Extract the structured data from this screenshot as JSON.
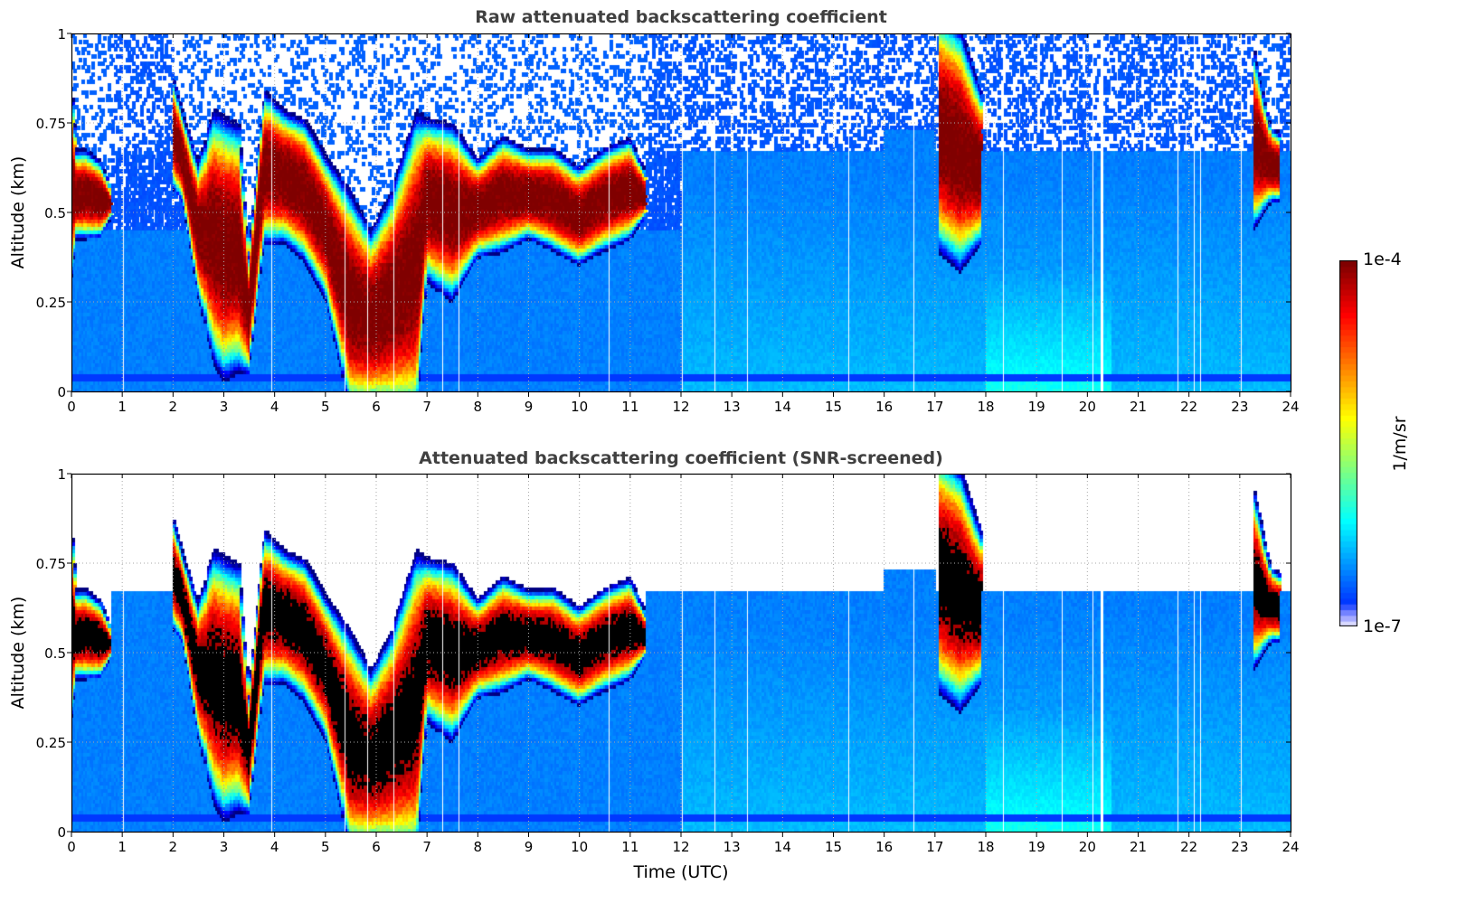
{
  "chart_data": [
    {
      "type": "heatmap",
      "title": "Raw attenuated backscattering coefficient",
      "xlabel": "",
      "ylabel": "Altitude (km)",
      "xlim": [
        0,
        24
      ],
      "ylim": [
        0,
        1
      ],
      "xticks": [
        "0",
        "1",
        "2",
        "3",
        "4",
        "5",
        "6",
        "7",
        "8",
        "9",
        "10",
        "11",
        "12",
        "13",
        "14",
        "15",
        "16",
        "17",
        "18",
        "19",
        "20",
        "21",
        "22",
        "23",
        "24"
      ],
      "yticks": [
        "0",
        "0.25",
        "0.5",
        "0.75",
        "1"
      ],
      "grid": true,
      "screened": false
    },
    {
      "type": "heatmap",
      "title": "Attenuated backscattering coefficient (SNR-screened)",
      "xlabel": "Time (UTC)",
      "ylabel": "Altitude (km)",
      "xlim": [
        0,
        24
      ],
      "ylim": [
        0,
        1
      ],
      "xticks": [
        "0",
        "1",
        "2",
        "3",
        "4",
        "5",
        "6",
        "7",
        "8",
        "9",
        "10",
        "11",
        "12",
        "13",
        "14",
        "15",
        "16",
        "17",
        "18",
        "19",
        "20",
        "21",
        "22",
        "23",
        "24"
      ],
      "yticks": [
        "0",
        "0.25",
        "0.5",
        "0.75",
        "1"
      ],
      "grid": true,
      "screened": true
    }
  ],
  "colorbar": {
    "label": "1/m/sr",
    "min_label": "1e-7",
    "max_label": "1e-4",
    "log_min": -7,
    "log_max": -4,
    "colormap": "jet"
  },
  "cloud_layers": {
    "unit_time": "hours UTC",
    "unit_altitude": "km",
    "time": [
      0.0,
      0.1,
      0.3,
      0.6,
      0.8,
      2.0,
      2.2,
      2.5,
      2.8,
      3.0,
      3.3,
      3.5,
      3.8,
      4.2,
      4.6,
      5.0,
      5.5,
      5.9,
      6.3,
      6.8,
      7.0,
      7.5,
      8.0,
      8.5,
      9.0,
      9.5,
      10.0,
      10.5,
      11.0,
      11.3,
      17.1,
      17.5,
      17.9,
      23.3,
      23.6,
      23.8
    ],
    "base": [
      0.35,
      0.45,
      0.45,
      0.45,
      0.5,
      0.6,
      0.55,
      0.3,
      0.15,
      0.1,
      0.12,
      0.08,
      0.45,
      0.45,
      0.4,
      0.3,
      0.0,
      0.0,
      0.0,
      0.0,
      0.35,
      0.3,
      0.4,
      0.42,
      0.45,
      0.42,
      0.38,
      0.42,
      0.45,
      0.5,
      0.45,
      0.4,
      0.45,
      0.5,
      0.55,
      0.55
    ],
    "top": [
      0.8,
      0.65,
      0.65,
      0.62,
      0.55,
      0.85,
      0.75,
      0.6,
      0.72,
      0.7,
      0.68,
      0.35,
      0.8,
      0.75,
      0.72,
      0.62,
      0.5,
      0.4,
      0.5,
      0.7,
      0.72,
      0.7,
      0.62,
      0.68,
      0.65,
      0.65,
      0.6,
      0.65,
      0.68,
      0.6,
      1.0,
      0.95,
      0.8,
      0.9,
      0.72,
      0.7
    ]
  }
}
